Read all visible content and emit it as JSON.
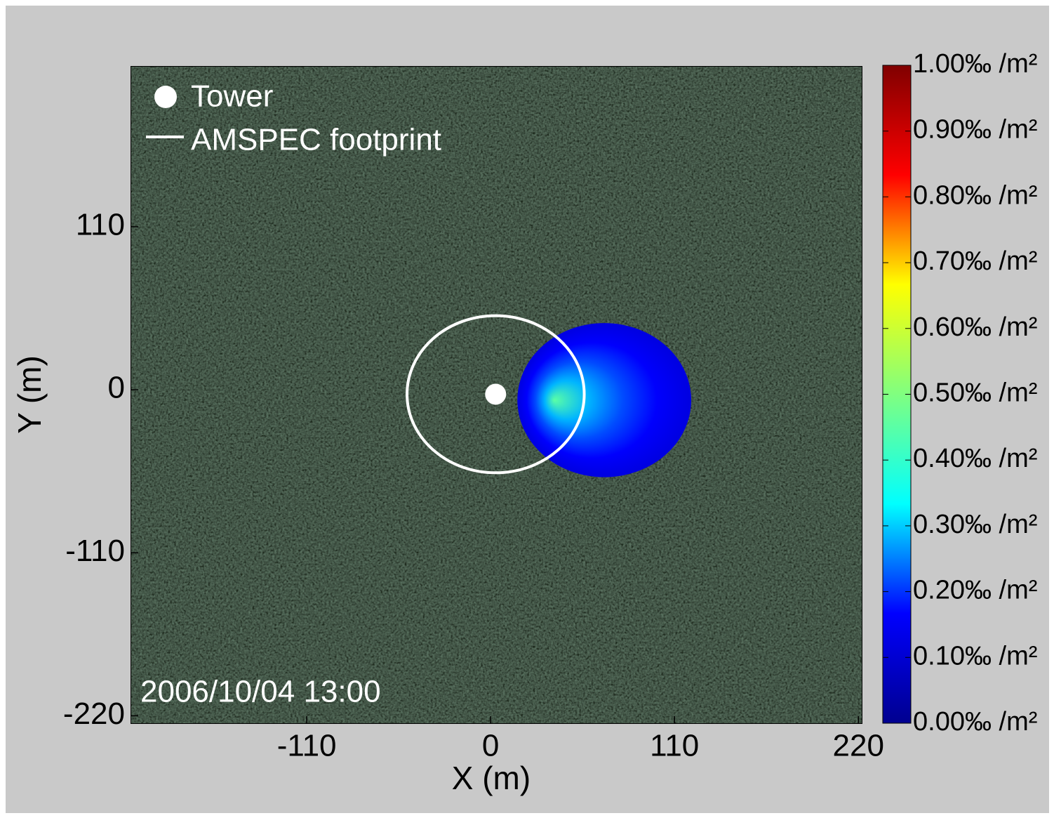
{
  "chart_data": {
    "type": "footprint-map",
    "xlabel": "X (m)",
    "ylabel": "Y (m)",
    "annotation": "2006/10/04 13:00",
    "xlim": [
      -215,
      222
    ],
    "ylim": [
      -225,
      218
    ],
    "xticks": [
      -110,
      0,
      110,
      220
    ],
    "yticks": [
      -220,
      -110,
      0,
      110
    ],
    "tower": {
      "name": "Tower",
      "x": 3,
      "y": -3,
      "color": "#ffffff"
    },
    "footprint": {
      "name": "AMSPEC footprint",
      "x": 3,
      "y": -3,
      "radius": 53,
      "color": "#ffffff"
    },
    "flux": {
      "x": 68,
      "y": -7,
      "radius": 52,
      "peak": 0.45,
      "peak_x": 38,
      "peak_y": -7,
      "edge": 0.12
    },
    "colorbar": {
      "lim": [
        0,
        1
      ],
      "colors": [
        "#00008f",
        "#0000ff",
        "#00ffff",
        "#80ff80",
        "#ffff00",
        "#ff0000",
        "#800000"
      ],
      "ticks": [
        {
          "value": 0,
          "label": "0.00‰ /m²"
        },
        {
          "value": 0.1,
          "label": "0.10‰ /m²"
        },
        {
          "value": 0.2,
          "label": "0.20‰ /m²"
        },
        {
          "value": 0.3,
          "label": "0.30‰ /m²"
        },
        {
          "value": 0.4,
          "label": "0.40‰ /m²"
        },
        {
          "value": 0.5,
          "label": "0.50‰ /m²"
        },
        {
          "value": 0.6,
          "label": "0.60‰ /m²"
        },
        {
          "value": 0.7,
          "label": "0.70‰ /m²"
        },
        {
          "value": 0.8,
          "label": "0.80‰ /m²"
        },
        {
          "value": 0.9,
          "label": "0.90‰ /m²"
        },
        {
          "value": 1,
          "label": "1.00‰ /m²"
        }
      ]
    }
  }
}
